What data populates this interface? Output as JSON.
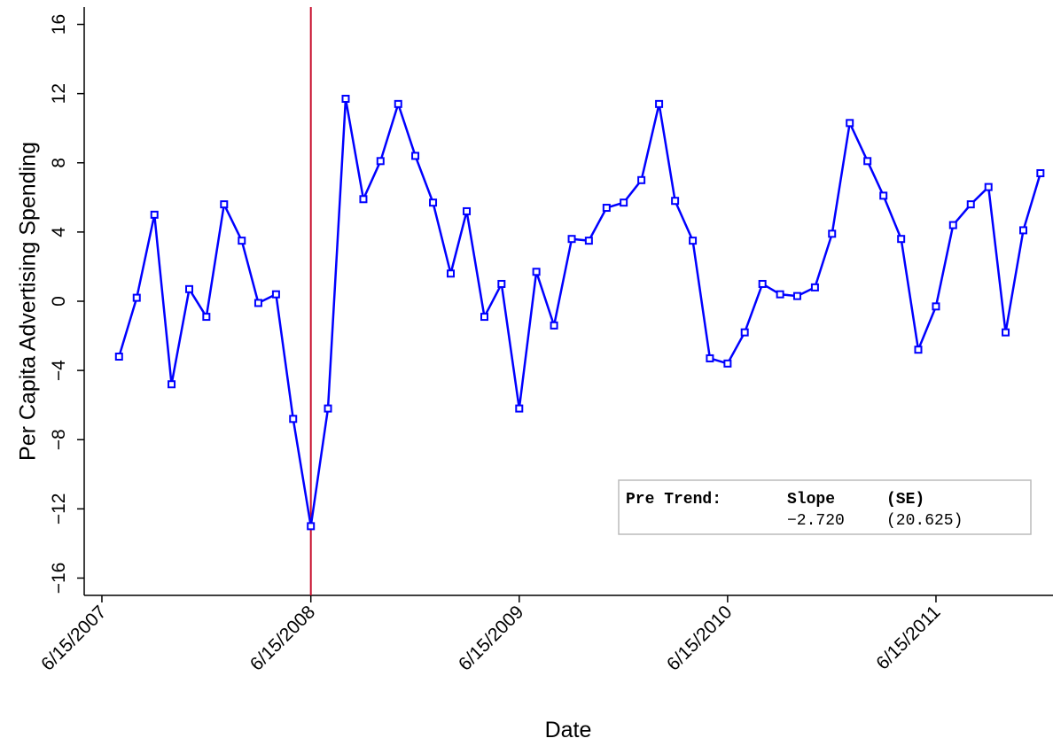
{
  "chart_data": {
    "type": "line",
    "xlabel": "Date",
    "ylabel": "Per Capita Advertising Spending",
    "x": [
      "2007-07-15",
      "2007-08-15",
      "2007-09-15",
      "2007-10-15",
      "2007-11-15",
      "2007-12-15",
      "2008-01-15",
      "2008-02-15",
      "2008-03-15",
      "2008-04-15",
      "2008-05-15",
      "2008-06-15",
      "2008-07-15",
      "2008-08-15",
      "2008-09-15",
      "2008-10-15",
      "2008-11-15",
      "2008-12-15",
      "2009-01-15",
      "2009-02-15",
      "2009-03-15",
      "2009-04-15",
      "2009-05-15",
      "2009-06-15",
      "2009-07-15",
      "2009-08-15",
      "2009-09-15",
      "2009-10-15",
      "2009-11-15",
      "2009-12-15",
      "2010-01-15",
      "2010-02-15",
      "2010-03-15",
      "2010-04-15",
      "2010-05-15",
      "2010-06-15",
      "2010-07-15",
      "2010-08-15",
      "2010-09-15",
      "2010-10-15",
      "2010-11-15",
      "2010-12-15",
      "2011-01-15",
      "2011-02-15",
      "2011-03-15",
      "2011-04-15",
      "2011-05-15",
      "2011-06-15",
      "2011-07-15",
      "2011-08-15",
      "2011-09-15",
      "2011-10-15",
      "2011-11-15",
      "2011-12-15"
    ],
    "series": [
      {
        "name": "Per Capita Advertising Spending",
        "color": "#0000ff",
        "values": [
          -3.2,
          0.2,
          5.0,
          -4.8,
          0.7,
          -0.9,
          5.6,
          3.5,
          -0.1,
          0.4,
          -6.8,
          -13.0,
          -6.2,
          11.7,
          5.9,
          8.1,
          11.4,
          8.4,
          5.7,
          1.6,
          5.2,
          -0.9,
          1.0,
          -6.2,
          1.7,
          -1.4,
          3.6,
          3.5,
          5.4,
          5.7,
          7.0,
          11.4,
          5.8,
          3.5,
          -3.3,
          -3.6,
          -1.8,
          1.0,
          0.4,
          0.3,
          0.8,
          3.9,
          10.3,
          8.1,
          6.1,
          3.6,
          -2.8,
          -0.3,
          4.4,
          5.6,
          6.6,
          -1.8,
          4.1,
          7.4
        ]
      }
    ],
    "vline": {
      "x": "2008-06-15",
      "color": "#c8102e"
    },
    "annotation": {
      "title": "Pre Trend:",
      "headers": [
        "Slope",
        "(SE)"
      ],
      "values": [
        "−2.720",
        "(20.625)"
      ]
    },
    "xlim": [
      "2007-05-15",
      "2012-01-06"
    ],
    "xticks": [
      {
        "value": "2007-06-15",
        "label": "6/15/2007"
      },
      {
        "value": "2008-06-15",
        "label": "6/15/2008"
      },
      {
        "value": "2009-06-15",
        "label": "6/15/2009"
      },
      {
        "value": "2010-06-15",
        "label": "6/15/2010"
      },
      {
        "value": "2011-06-15",
        "label": "6/15/2011"
      }
    ],
    "ylim": [
      -17,
      17
    ],
    "yticks": [
      {
        "value": -16,
        "label": "−16"
      },
      {
        "value": -12,
        "label": "−12"
      },
      {
        "value": -8,
        "label": "−8"
      },
      {
        "value": -4,
        "label": "−4"
      },
      0,
      4,
      8,
      12,
      16
    ],
    "grid": false
  }
}
